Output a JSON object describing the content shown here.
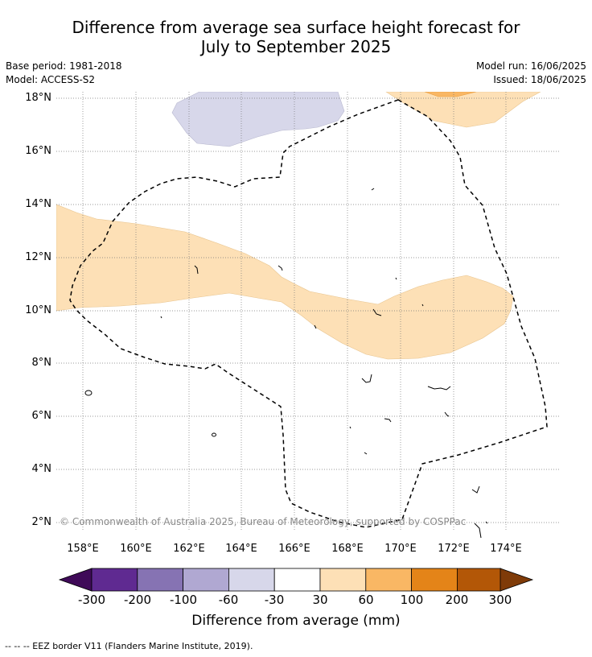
{
  "title_line1": "Difference from average sea surface height forecast for",
  "title_line2": "July to September 2025",
  "meta_left": [
    "Base period: 1981-2018",
    "Model: ACCESS-S2"
  ],
  "meta_right": [
    "Model run: 16/06/2025",
    "Issued: 18/06/2025"
  ],
  "lat_labels": [
    "18°N",
    "16°N",
    "14°N",
    "12°N",
    "10°N",
    "8°N",
    "6°N",
    "4°N",
    "2°N"
  ],
  "lon_labels": [
    "158°E",
    "160°E",
    "162°E",
    "164°E",
    "166°E",
    "168°E",
    "170°E",
    "172°E",
    "174°E"
  ],
  "copyright": "© Commonwealth of Australia 2025, Bureau of Meteorology, supported by COSPPac",
  "colorbar": {
    "ticks": [
      "-300",
      "-200",
      "-100",
      "-60",
      "-30",
      "30",
      "60",
      "100",
      "200",
      "300"
    ],
    "title": "Difference from average (mm)",
    "colors": [
      "#3f0a58",
      "#5f2a91",
      "#8673b3",
      "#b0a8d2",
      "#d7d7ea",
      "#ffffff",
      "#fde0b6",
      "#f9b764",
      "#e48418",
      "#b35707",
      "#7f3b08"
    ]
  },
  "legend_note": "--  --  -- EEZ border V11 (Flanders Marine Institute, 2019)."
}
